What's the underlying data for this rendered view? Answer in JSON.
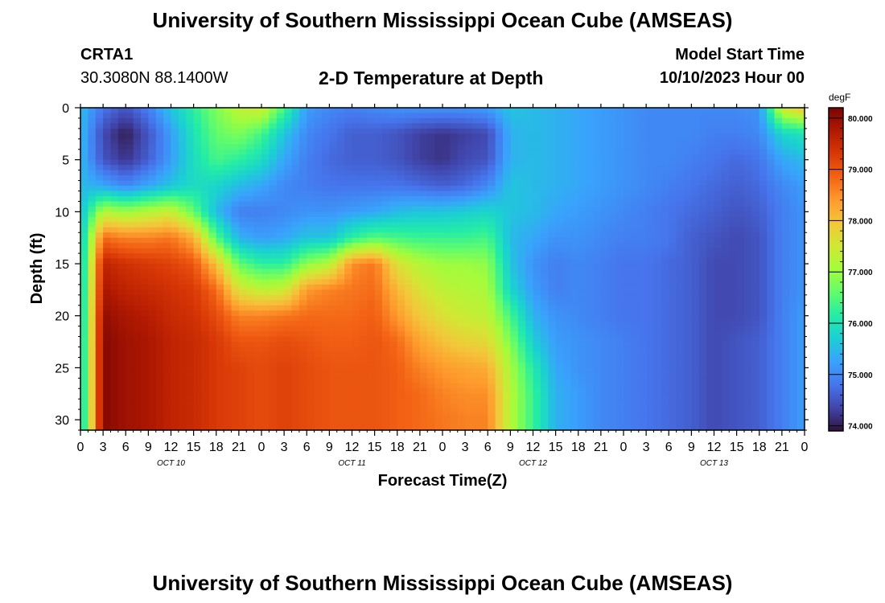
{
  "header": {
    "title": "University of Southern Mississippi Ocean Cube (AMSEAS)",
    "station": "CRTA1",
    "coordinates": "30.3080N  88.1400W",
    "subtitle": "2-D Temperature at Depth",
    "model_start_label": "Model Start Time",
    "model_start_value": "10/10/2023 Hour 00"
  },
  "footer": {
    "title": "University of Southern Mississippi Ocean Cube (AMSEAS)"
  },
  "chart_data": {
    "type": "heatmap",
    "title": "2-D Temperature at Depth",
    "xlabel": "Forecast Time(Z)",
    "ylabel": "Depth (ft)",
    "x_unit": "hours since 10/10/2023 00Z",
    "xlim": [
      0,
      96
    ],
    "ylim": [
      0,
      31
    ],
    "x_ticks": [
      0,
      3,
      6,
      9,
      12,
      15,
      18,
      21,
      24,
      27,
      30,
      33,
      36,
      39,
      42,
      45,
      48,
      51,
      54,
      57,
      60,
      63,
      66,
      69,
      72,
      75,
      78,
      81,
      84,
      87,
      90,
      93,
      96
    ],
    "x_tick_labels": [
      "0",
      "3",
      "6",
      "9",
      "12",
      "15",
      "18",
      "21",
      "0",
      "3",
      "6",
      "9",
      "12",
      "15",
      "18",
      "21",
      "0",
      "3",
      "6",
      "9",
      "12",
      "15",
      "18",
      "21",
      "0",
      "3",
      "6",
      "9",
      "12",
      "15",
      "18",
      "21",
      "0"
    ],
    "day_labels": [
      {
        "label": "OCT 10",
        "x": 12
      },
      {
        "label": "OCT 11",
        "x": 36
      },
      {
        "label": "OCT 12",
        "x": 60
      },
      {
        "label": "OCT 13",
        "x": 84
      }
    ],
    "y_ticks": [
      0,
      5,
      10,
      15,
      20,
      25,
      30
    ],
    "colorbar": {
      "unit": "degF",
      "range": [
        73.9,
        80.2
      ],
      "ticks": [
        74.0,
        75.0,
        76.0,
        77.0,
        78.0,
        79.0,
        80.0
      ],
      "tick_labels": [
        "74.000",
        "75.000",
        "76.000",
        "77.000",
        "78.000",
        "79.000",
        "80.000"
      ]
    },
    "x": [
      0,
      3,
      6,
      9,
      12,
      15,
      18,
      21,
      24,
      27,
      30,
      33,
      36,
      39,
      42,
      45,
      48,
      51,
      54,
      57,
      60,
      63,
      66,
      69,
      72,
      75,
      78,
      81,
      84,
      87,
      90,
      93,
      96
    ],
    "depths": [
      0,
      2.5,
      5,
      7.5,
      10,
      12.5,
      15,
      17.5,
      20,
      22.5,
      25,
      27.5,
      30,
      31
    ],
    "values": [
      [
        75.5,
        75.5,
        75.5,
        75.5,
        75.5,
        75.5,
        75.5,
        75.5,
        75.5,
        75.5,
        75.5,
        75.5,
        75.5,
        75.5
      ],
      [
        74.8,
        74.4,
        74.5,
        75.3,
        77.2,
        78.8,
        79.6,
        79.8,
        80.0,
        80.1,
        80.1,
        80.1,
        80.1,
        80.1
      ],
      [
        74.5,
        74.0,
        74.2,
        75.0,
        77.0,
        78.6,
        79.4,
        79.6,
        79.8,
        79.9,
        79.9,
        79.9,
        79.9,
        79.9
      ],
      [
        74.9,
        74.5,
        74.6,
        75.3,
        77.2,
        78.6,
        79.3,
        79.5,
        79.7,
        79.8,
        79.8,
        79.8,
        79.8,
        79.8
      ],
      [
        75.6,
        75.2,
        75.2,
        75.6,
        77.4,
        78.7,
        79.2,
        79.4,
        79.5,
        79.6,
        79.6,
        79.6,
        79.6,
        79.6
      ],
      [
        76.2,
        76.0,
        75.9,
        75.9,
        76.6,
        78.2,
        79.0,
        79.3,
        79.4,
        79.5,
        79.5,
        79.5,
        79.5,
        79.5
      ],
      [
        76.8,
        76.6,
        76.4,
        75.8,
        75.5,
        76.5,
        78.0,
        78.8,
        79.1,
        79.3,
        79.3,
        79.3,
        79.3,
        79.3
      ],
      [
        77.3,
        76.8,
        76.2,
        75.5,
        74.9,
        75.4,
        76.6,
        77.6,
        78.6,
        79.0,
        79.2,
        79.2,
        79.2,
        79.2
      ],
      [
        77.5,
        76.4,
        75.9,
        75.3,
        74.9,
        75.2,
        76.2,
        77.3,
        78.6,
        79.0,
        79.1,
        79.1,
        79.1,
        79.1
      ],
      [
        76.4,
        75.6,
        75.3,
        75.0,
        75.0,
        75.3,
        76.2,
        77.4,
        78.7,
        79.1,
        79.2,
        79.2,
        79.2,
        79.2
      ],
      [
        75.2,
        75.0,
        74.9,
        74.9,
        75.1,
        75.6,
        76.9,
        78.4,
        78.8,
        79.0,
        79.1,
        79.1,
        79.1,
        79.1
      ],
      [
        75.0,
        74.8,
        74.7,
        74.8,
        75.1,
        75.6,
        77.2,
        78.6,
        78.8,
        78.9,
        79.0,
        79.0,
        79.0,
        79.0
      ],
      [
        74.9,
        74.6,
        74.6,
        74.8,
        75.2,
        76.2,
        78.5,
        78.7,
        78.8,
        78.9,
        79.0,
        79.0,
        79.0,
        79.0
      ],
      [
        75.0,
        74.6,
        74.6,
        74.8,
        75.3,
        76.5,
        78.7,
        78.8,
        78.9,
        79.0,
        79.0,
        79.0,
        79.0,
        79.0
      ],
      [
        75.1,
        74.5,
        74.5,
        74.8,
        75.5,
        76.4,
        77.6,
        78.1,
        78.4,
        78.8,
        78.9,
        78.9,
        78.9,
        78.9
      ],
      [
        75.1,
        74.3,
        74.3,
        74.7,
        75.6,
        76.3,
        77.2,
        77.6,
        77.9,
        78.3,
        78.6,
        78.8,
        78.8,
        78.8
      ],
      [
        75.1,
        74.2,
        74.2,
        74.6,
        75.6,
        76.3,
        77.0,
        77.3,
        77.6,
        78.0,
        78.4,
        78.6,
        78.7,
        78.7
      ],
      [
        75.1,
        74.3,
        74.4,
        74.7,
        75.7,
        76.3,
        77.0,
        77.2,
        77.4,
        77.8,
        78.3,
        78.5,
        78.6,
        78.6
      ],
      [
        75.2,
        74.4,
        74.5,
        75.0,
        75.8,
        76.4,
        76.9,
        77.1,
        77.3,
        77.7,
        78.2,
        78.5,
        78.6,
        78.6
      ],
      [
        75.6,
        75.4,
        75.4,
        75.6,
        75.6,
        75.5,
        75.6,
        75.8,
        76.4,
        76.8,
        77.1,
        77.2,
        77.2,
        77.2
      ],
      [
        75.5,
        75.5,
        75.5,
        75.5,
        75.5,
        75.3,
        75.1,
        75.2,
        75.4,
        75.7,
        76.1,
        76.3,
        76.3,
        76.3
      ],
      [
        75.4,
        75.4,
        75.4,
        75.4,
        75.3,
        75.1,
        74.9,
        74.9,
        75.1,
        75.2,
        75.3,
        75.4,
        75.4,
        75.4
      ],
      [
        75.3,
        75.3,
        75.3,
        75.3,
        75.2,
        75.1,
        75.0,
        75.0,
        75.0,
        75.1,
        75.1,
        75.2,
        75.2,
        75.2
      ],
      [
        75.2,
        75.2,
        75.2,
        75.2,
        75.1,
        75.0,
        74.9,
        74.9,
        74.9,
        75.0,
        75.0,
        75.0,
        75.0,
        75.0
      ],
      [
        75.1,
        75.1,
        75.1,
        75.1,
        75.0,
        74.9,
        74.8,
        74.8,
        74.8,
        74.9,
        74.9,
        74.9,
        74.9,
        74.9
      ],
      [
        75.0,
        75.0,
        75.0,
        75.0,
        74.9,
        74.9,
        74.8,
        74.8,
        74.8,
        74.8,
        74.8,
        74.8,
        74.8,
        74.8
      ],
      [
        75.0,
        75.0,
        75.0,
        74.9,
        74.8,
        74.8,
        74.7,
        74.7,
        74.7,
        74.7,
        74.7,
        74.7,
        74.7,
        74.7
      ],
      [
        75.0,
        75.0,
        74.9,
        74.8,
        74.7,
        74.6,
        74.6,
        74.6,
        74.6,
        74.6,
        74.6,
        74.6,
        74.6,
        74.6
      ],
      [
        75.0,
        74.9,
        74.8,
        74.7,
        74.6,
        74.5,
        74.4,
        74.4,
        74.4,
        74.4,
        74.4,
        74.4,
        74.4,
        74.4
      ],
      [
        75.0,
        74.9,
        74.7,
        74.6,
        74.5,
        74.4,
        74.4,
        74.4,
        74.4,
        74.5,
        74.5,
        74.5,
        74.5,
        74.5
      ],
      [
        75.1,
        75.0,
        74.8,
        74.7,
        74.6,
        74.5,
        74.5,
        74.5,
        74.5,
        74.6,
        74.6,
        74.6,
        74.6,
        74.6
      ],
      [
        77.5,
        75.8,
        75.3,
        75.0,
        74.9,
        74.9,
        74.9,
        74.9,
        74.9,
        74.9,
        74.9,
        74.9,
        74.9,
        74.9
      ],
      [
        78.0,
        76.0,
        75.5,
        75.2,
        75.1,
        75.1,
        75.1,
        75.1,
        75.2,
        75.2,
        75.2,
        75.2,
        75.2,
        75.2
      ]
    ]
  },
  "colors": {
    "colormap": [
      "#30123b",
      "#4145ab",
      "#4675ed",
      "#39a2fc",
      "#1bcfd4",
      "#24eca6",
      "#61fc6c",
      "#a4fc3b",
      "#d1e834",
      "#f3c63a",
      "#fe9b2d",
      "#f36315",
      "#d93806",
      "#b11901",
      "#7a0403"
    ]
  }
}
